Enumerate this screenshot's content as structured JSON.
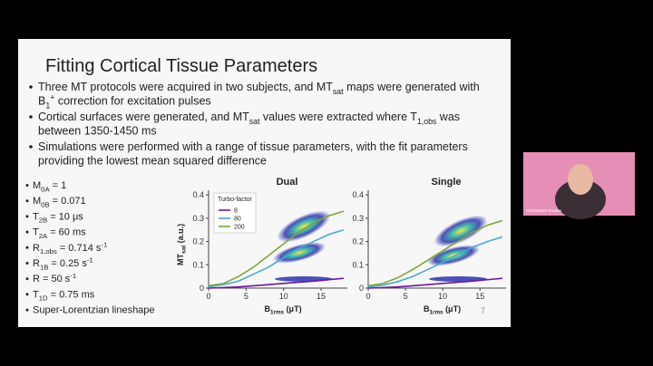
{
  "slide": {
    "title": "Fitting Cortical Tissue Parameters",
    "bullets": [
      [
        [
          {
            "text": "Three MT protocols were acquired in two subjects, and MT"
          },
          {
            "sub": "sat"
          },
          {
            "text": " maps were generated with"
          }
        ],
        [
          {
            "text": "B"
          },
          {
            "sub": "1"
          },
          {
            "sup": "+"
          },
          {
            "text": " correction for excitation pulses"
          }
        ]
      ],
      [
        [
          {
            "text": "Cortical surfaces were generated, and MT"
          },
          {
            "sub": "sat"
          },
          {
            "text": " values were extracted where T"
          },
          {
            "sub": "1,obs"
          },
          {
            "text": " was"
          }
        ],
        [
          {
            "text": "between 1350-1450 ms"
          }
        ]
      ],
      [
        [
          {
            "text": "Simulations were performed with a range of tissue parameters, with the fit parameters"
          }
        ],
        [
          {
            "text": "providing the lowest mean squared difference"
          }
        ]
      ]
    ],
    "parameters": [
      [
        {
          "text": "M"
        },
        {
          "sub": "0A"
        },
        {
          "text": " = 1"
        }
      ],
      [
        {
          "text": "M"
        },
        {
          "sub": "0B"
        },
        {
          "text": " = 0.071"
        }
      ],
      [
        {
          "text": "T"
        },
        {
          "sub": "2B"
        },
        {
          "text": " = 10 μs"
        }
      ],
      [
        {
          "text": "T"
        },
        {
          "sub": "2A"
        },
        {
          "text": " = 60 ms"
        }
      ],
      [
        {
          "text": "R"
        },
        {
          "sub": "1,obs"
        },
        {
          "text": " = 0.714 s"
        },
        {
          "sup": "-1"
        }
      ],
      [
        {
          "text": "R"
        },
        {
          "sub": "1B"
        },
        {
          "text": " = 0.25 s"
        },
        {
          "sup": "-1"
        }
      ],
      [
        {
          "text": "R = 50 s"
        },
        {
          "sup": "-1"
        }
      ],
      [
        {
          "text": "T"
        },
        {
          "sub": "1D"
        },
        {
          "text": " = 0.75 ms"
        }
      ],
      [
        {
          "text": "Super-Lorentzian lineshape"
        }
      ]
    ],
    "page_number": "7"
  },
  "webcam": {
    "name": "Christopher Rowley"
  },
  "chart_data": [
    {
      "type": "line",
      "title": "Dual",
      "x_label": [
        {
          "text": "B"
        },
        {
          "sub": "1rms"
        },
        {
          "text": " (μT)"
        }
      ],
      "y_label": [
        {
          "text": "MT"
        },
        {
          "sub": "sat"
        },
        {
          "text": " (a.u.)"
        }
      ],
      "legend_title": "Turbo-factor",
      "x": [
        0,
        2,
        4,
        6,
        8,
        10,
        12,
        14,
        16,
        18
      ],
      "xlim": [
        0,
        18.5
      ],
      "xticks": [
        0,
        5,
        10,
        15
      ],
      "ylim": [
        0,
        0.42
      ],
      "yticks": [
        0,
        0.1,
        0.2,
        0.3,
        0.4
      ],
      "series": [
        {
          "name": "8",
          "color": "#6a1b9a",
          "values": [
            0,
            0.002,
            0.005,
            0.01,
            0.015,
            0.02,
            0.025,
            0.03,
            0.036,
            0.042
          ]
        },
        {
          "name": "80",
          "color": "#4aa8d8",
          "values": [
            0.005,
            0.015,
            0.03,
            0.06,
            0.09,
            0.13,
            0.17,
            0.2,
            0.23,
            0.25
          ]
        },
        {
          "name": "200",
          "color": "#7fa63a",
          "values": [
            0.01,
            0.02,
            0.05,
            0.09,
            0.14,
            0.19,
            0.24,
            0.28,
            0.31,
            0.33
          ]
        }
      ]
    },
    {
      "type": "line",
      "title": "Single",
      "x_label": [
        {
          "text": "B"
        },
        {
          "sub": "1rms"
        },
        {
          "text": " (μT)"
        }
      ],
      "x": [
        0,
        2,
        4,
        6,
        8,
        10,
        12,
        14,
        16,
        18
      ],
      "xlim": [
        0,
        18.5
      ],
      "xticks": [
        0,
        5,
        10,
        15
      ],
      "ylim": [
        0,
        0.42
      ],
      "yticks": [
        0,
        0.1,
        0.2,
        0.3,
        0.4
      ],
      "series": [
        {
          "color": "#6a1b9a",
          "values": [
            0,
            0.002,
            0.005,
            0.01,
            0.015,
            0.02,
            0.025,
            0.03,
            0.036,
            0.042
          ]
        },
        {
          "color": "#4aa8d8",
          "values": [
            0.005,
            0.013,
            0.028,
            0.05,
            0.08,
            0.11,
            0.145,
            0.175,
            0.2,
            0.22
          ]
        },
        {
          "color": "#7fa63a",
          "values": [
            0.01,
            0.02,
            0.045,
            0.08,
            0.12,
            0.16,
            0.2,
            0.24,
            0.27,
            0.29
          ]
        }
      ]
    }
  ]
}
